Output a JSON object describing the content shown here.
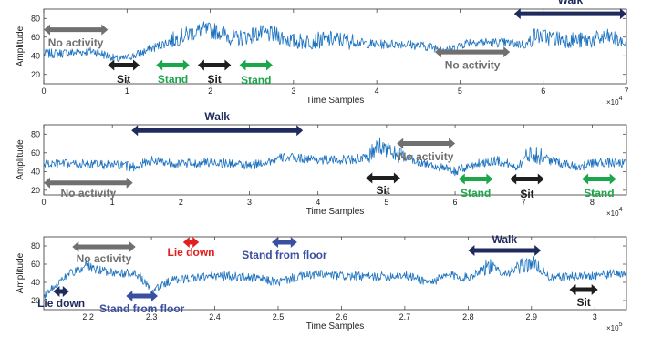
{
  "chart_data": [
    {
      "type": "line",
      "xlabel": "Time Samples",
      "ylabel": "Amplitude",
      "x_multiplier": "×10",
      "x_exponent": "4",
      "xlim": [
        0,
        7
      ],
      "ylim": [
        10,
        90
      ],
      "xticks": [
        0,
        1,
        2,
        3,
        4,
        5,
        6,
        7
      ],
      "yticks": [
        20,
        40,
        60,
        80
      ],
      "series": [
        {
          "x": [
            0,
            0.3,
            0.6,
            0.9,
            1.0,
            1.15,
            1.3,
            1.5,
            1.7,
            1.9,
            2.1,
            2.3,
            2.6,
            2.8,
            3.0,
            3.2,
            3.5,
            3.8,
            4.0,
            4.3,
            4.6,
            4.9,
            5.1,
            5.5,
            5.8,
            5.9,
            6.2,
            6.5,
            6.8,
            7.0
          ],
          "y": [
            42,
            43,
            45,
            36,
            38,
            42,
            48,
            55,
            62,
            68,
            66,
            58,
            64,
            62,
            55,
            56,
            58,
            54,
            52,
            53,
            50,
            47,
            55,
            54,
            52,
            62,
            58,
            56,
            60,
            52
          ]
        }
      ],
      "annotations": [
        {
          "text": "No activity",
          "x_start": 0,
          "x_end": 0.77,
          "y": 68,
          "color": "#707070",
          "label_y": 54
        },
        {
          "text": "Sit",
          "x_start": 0.77,
          "x_end": 1.15,
          "y": 30,
          "color": "#1e1e1e",
          "label_y": 15
        },
        {
          "text": "Stand",
          "x_start": 1.35,
          "x_end": 1.75,
          "y": 30,
          "color": "#1ba64a",
          "label_y": 15
        },
        {
          "text": "Sit",
          "x_start": 1.85,
          "x_end": 2.25,
          "y": 30,
          "color": "#1e1e1e",
          "label_y": 15
        },
        {
          "text": "Stand",
          "x_start": 2.35,
          "x_end": 2.75,
          "y": 30,
          "color": "#1ba64a",
          "label_y": 14
        },
        {
          "text": "No activity",
          "x_start": 4.7,
          "x_end": 5.6,
          "y": 44,
          "color": "#707070",
          "label_y": 30
        },
        {
          "text": "Walk",
          "x_start": 5.65,
          "x_end": 7.0,
          "y": 85,
          "color": "#1e2b5c",
          "label_y": 100
        }
      ]
    },
    {
      "type": "line",
      "xlabel": "Time Samples",
      "ylabel": "Amplitude",
      "x_multiplier": "×10",
      "x_exponent": "4",
      "xlim": [
        0,
        8.5
      ],
      "ylim": [
        15,
        90
      ],
      "xticks": [
        0,
        1,
        2,
        3,
        4,
        5,
        6,
        7,
        8
      ],
      "yticks": [
        20,
        40,
        60,
        80
      ],
      "series": [
        {
          "x": [
            0,
            0.5,
            1.0,
            1.3,
            1.6,
            2.0,
            2.5,
            3.0,
            3.5,
            3.8,
            4.2,
            4.7,
            4.9,
            5.1,
            5.4,
            5.8,
            6.0,
            6.3,
            6.6,
            6.9,
            7.1,
            7.4,
            7.8,
            8.1,
            8.5
          ],
          "y": [
            48,
            48,
            47,
            45,
            52,
            48,
            50,
            46,
            55,
            54,
            52,
            54,
            68,
            60,
            52,
            44,
            40,
            48,
            52,
            45,
            60,
            52,
            45,
            50,
            48
          ]
        }
      ],
      "annotations": [
        {
          "text": "No activity",
          "x_start": 0,
          "x_end": 1.3,
          "y": 28,
          "color": "#707070",
          "label_y": 17
        },
        {
          "text": "Walk",
          "x_start": 1.28,
          "x_end": 3.78,
          "y": 84,
          "color": "#1e2b5c",
          "label_y": 99
        },
        {
          "text": "No activity",
          "x_start": 5.15,
          "x_end": 6.0,
          "y": 70,
          "color": "#707070",
          "label_y": 56
        },
        {
          "text": "Sit",
          "x_start": 4.7,
          "x_end": 5.2,
          "y": 33,
          "color": "#1e1e1e",
          "label_y": 20
        },
        {
          "text": "Stand",
          "x_start": 6.05,
          "x_end": 6.55,
          "y": 32,
          "color": "#1ba64a",
          "label_y": 17
        },
        {
          "text": "Sit",
          "x_start": 6.8,
          "x_end": 7.3,
          "y": 32,
          "color": "#1e1e1e",
          "label_y": 16
        },
        {
          "text": "Stand",
          "x_start": 7.85,
          "x_end": 8.35,
          "y": 32,
          "color": "#1ba64a",
          "label_y": 17
        }
      ]
    },
    {
      "type": "line",
      "xlabel": "Time Samples",
      "ylabel": "Amplitude",
      "x_multiplier": "×10",
      "x_exponent": "5",
      "xlim": [
        2.13,
        3.05
      ],
      "ylim": [
        10,
        90
      ],
      "xticks": [
        2.2,
        2.3,
        2.4,
        2.5,
        2.6,
        2.7,
        2.8,
        2.9,
        3
      ],
      "xtick_labels": [
        "2.2",
        "2.3",
        "2.4",
        "2.5",
        "2.6",
        "2.7",
        "2.8",
        "2.9",
        "3"
      ],
      "yticks": [
        20,
        40,
        60,
        80
      ],
      "series": [
        {
          "x": [
            2.13,
            2.15,
            2.17,
            2.2,
            2.23,
            2.26,
            2.28,
            2.3,
            2.33,
            2.38,
            2.42,
            2.46,
            2.5,
            2.53,
            2.56,
            2.6,
            2.65,
            2.7,
            2.74,
            2.77,
            2.8,
            2.83,
            2.86,
            2.9,
            2.93,
            2.96,
            3.0,
            3.05
          ],
          "y": [
            25,
            38,
            50,
            56,
            52,
            50,
            48,
            30,
            42,
            46,
            47,
            45,
            40,
            46,
            49,
            47,
            46,
            48,
            40,
            48,
            45,
            58,
            50,
            62,
            45,
            46,
            48,
            50
          ]
        }
      ],
      "annotations": [
        {
          "text": "No activity",
          "x_start": 2.175,
          "x_end": 2.275,
          "y": 79,
          "color": "#707070",
          "label_y": 66
        },
        {
          "text": "Lie down",
          "x_start": 2.145,
          "x_end": 2.17,
          "y": 30,
          "color": "#1e2b5c",
          "label_y": 17
        },
        {
          "text": "Lie down",
          "x_start": 2.35,
          "x_end": 2.375,
          "y": 84,
          "color": "#e02020",
          "label_y": 73
        },
        {
          "text": "Stand from floor",
          "x_start": 2.26,
          "x_end": 2.31,
          "y": 25,
          "color": "#3a4fa0",
          "label_y": 11
        },
        {
          "text": "Stand from floor",
          "x_start": 2.49,
          "x_end": 2.53,
          "y": 84,
          "color": "#3a4fa0",
          "label_y": 70
        },
        {
          "text": "Walk",
          "x_start": 2.8,
          "x_end": 2.915,
          "y": 75,
          "color": "#1e2b5c",
          "label_y": 87
        },
        {
          "text": "Sit",
          "x_start": 2.96,
          "x_end": 3.005,
          "y": 32,
          "color": "#1e1e1e",
          "label_y": 18
        }
      ]
    }
  ]
}
